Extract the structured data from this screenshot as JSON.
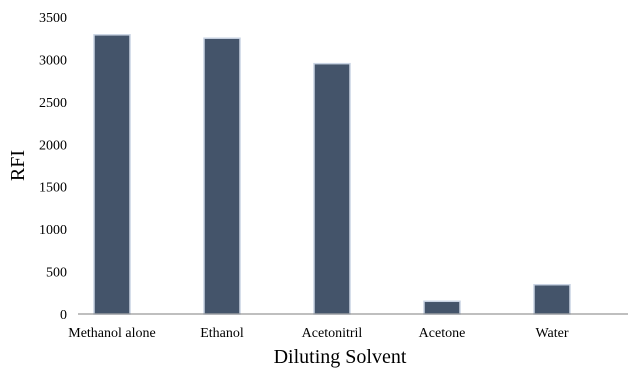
{
  "chart_data": {
    "type": "bar",
    "title": "",
    "xlabel": "Diluting Solvent",
    "ylabel": "RFI",
    "categories": [
      "Methanol alone",
      "Ethanol",
      "Acetonitril",
      "Acetone",
      "Water"
    ],
    "values": [
      3290,
      3250,
      2950,
      150,
      345
    ],
    "ylim": [
      0,
      3500
    ],
    "yticks": [
      0,
      500,
      1000,
      1500,
      2000,
      2500,
      3000,
      3500
    ],
    "grid": false,
    "legend": "none",
    "bar_color": "#44546a",
    "bar_edge_color": "#c9d3e3"
  }
}
